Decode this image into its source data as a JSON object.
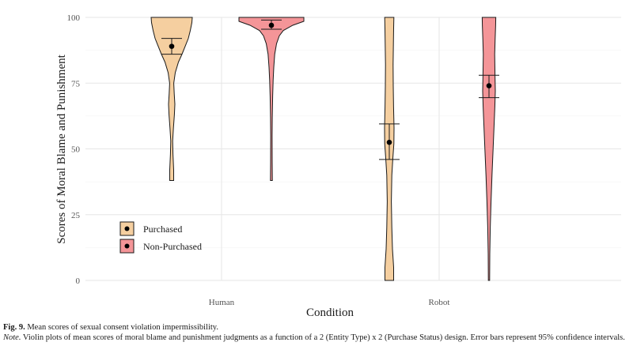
{
  "chart_data": {
    "type": "violin",
    "xlabel": "Condition",
    "ylabel": "Scores of Moral Blame and Punishment",
    "categories": [
      "Human",
      "Robot"
    ],
    "ylim": [
      0,
      100
    ],
    "yticks": [
      0,
      25,
      50,
      75,
      100
    ],
    "grid": true,
    "legend_position": "bottom-left",
    "series": [
      {
        "name": "Purchased",
        "color": "#f5cfa0",
        "means": [
          89,
          52.5
        ],
        "ci_low": [
          86,
          46
        ],
        "ci_high": [
          92,
          59.5
        ],
        "min": [
          38,
          0
        ],
        "max": [
          100,
          100
        ]
      },
      {
        "name": "Non-Purchased",
        "color": "#f49598",
        "means": [
          97,
          74
        ],
        "ci_low": [
          95.5,
          69.5
        ],
        "ci_high": [
          99,
          78
        ],
        "min": [
          38,
          0
        ],
        "max": [
          100,
          100
        ]
      }
    ]
  },
  "caption": {
    "fig_label": "Fig. 9.",
    "fig_text": " Mean scores of sexual consent violation impermissibility.",
    "note_label": "Note.",
    "note_text": " Violin plots of mean scores of moral blame and punishment judgments as a function of a 2 (Entity Type) x 2 (Purchase Status) design. Error bars represent 95% confidence intervals."
  }
}
